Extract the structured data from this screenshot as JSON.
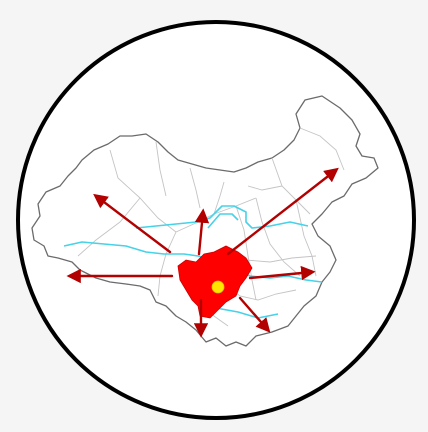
{
  "map": {
    "frame_shape": "circle",
    "colors": {
      "page_background": "#f5f5f5",
      "map_background": "#ffffff",
      "country_fill": "#ffffff",
      "outline": "#6b6b6b",
      "inner_borders": "#c4c4c4",
      "rivers": "#46d2e8",
      "highlight_region": "#ff0000",
      "center_marker": "#ffe600",
      "arrows": "#b30000",
      "frame": "#000000"
    },
    "arrow_directions": [
      "north-west",
      "north",
      "north-east",
      "west",
      "east",
      "south",
      "south-east"
    ],
    "icons": {
      "marker": "yellow-dot-icon",
      "arrow": "arrowhead-icon"
    }
  }
}
